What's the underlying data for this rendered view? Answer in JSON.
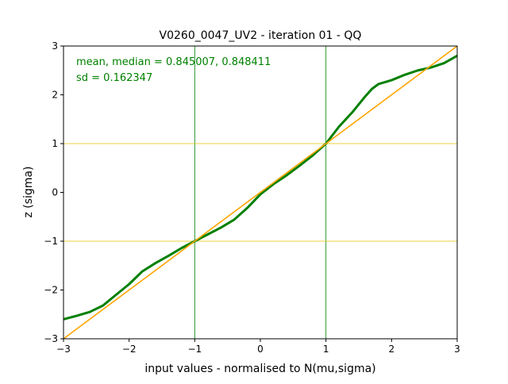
{
  "chart_data": {
    "type": "line",
    "title": "V0260_0047_UV2 - iteration 01 - QQ",
    "xlabel": "input values - normalised to N(mu,sigma)",
    "ylabel": "z (sigma)",
    "xlim": [
      -3,
      3
    ],
    "ylim": [
      -3,
      3
    ],
    "xticks": [
      -3,
      -2,
      -1,
      0,
      1,
      2,
      3
    ],
    "yticks": [
      -3,
      -2,
      -1,
      0,
      1,
      2,
      3
    ],
    "xtick_labels": [
      "−3",
      "−2",
      "−1",
      "0",
      "1",
      "2",
      "3"
    ],
    "ytick_labels": [
      "−3",
      "−2",
      "−1",
      "0",
      "1",
      "2",
      "3"
    ],
    "annotations": [
      "mean, median = 0.845007, 0.848411",
      "sd = 0.162347"
    ],
    "reference_vlines": [
      -1,
      1
    ],
    "reference_hlines": [
      -1,
      1
    ],
    "series": [
      {
        "color": "#008000",
        "x": [
          -3.0,
          -2.8,
          -2.6,
          -2.4,
          -2.2,
          -2.0,
          -1.8,
          -1.6,
          -1.4,
          -1.2,
          -1.0,
          -0.8,
          -0.6,
          -0.4,
          -0.2,
          0.0,
          0.2,
          0.4,
          0.6,
          0.8,
          1.0,
          1.2,
          1.4,
          1.6,
          1.7,
          1.8,
          2.0,
          2.2,
          2.4,
          2.6,
          2.8,
          3.0
        ],
        "y": [
          -2.6,
          -2.53,
          -2.45,
          -2.32,
          -2.1,
          -1.88,
          -1.62,
          -1.45,
          -1.3,
          -1.14,
          -1.0,
          -0.86,
          -0.72,
          -0.56,
          -0.32,
          -0.04,
          0.17,
          0.35,
          0.55,
          0.76,
          1.0,
          1.35,
          1.64,
          1.97,
          2.12,
          2.22,
          2.3,
          2.41,
          2.5,
          2.56,
          2.65,
          2.8
        ]
      },
      {
        "color": "#ffa500",
        "x": [
          -3,
          3
        ],
        "y": [
          -3,
          3
        ]
      }
    ],
    "colors": {
      "data_line": "#008000",
      "reference_diagonal": "#ffa500",
      "reference_vlines": "#008000",
      "reference_hlines": "#e6c200",
      "annotation_text": "#008000"
    }
  }
}
